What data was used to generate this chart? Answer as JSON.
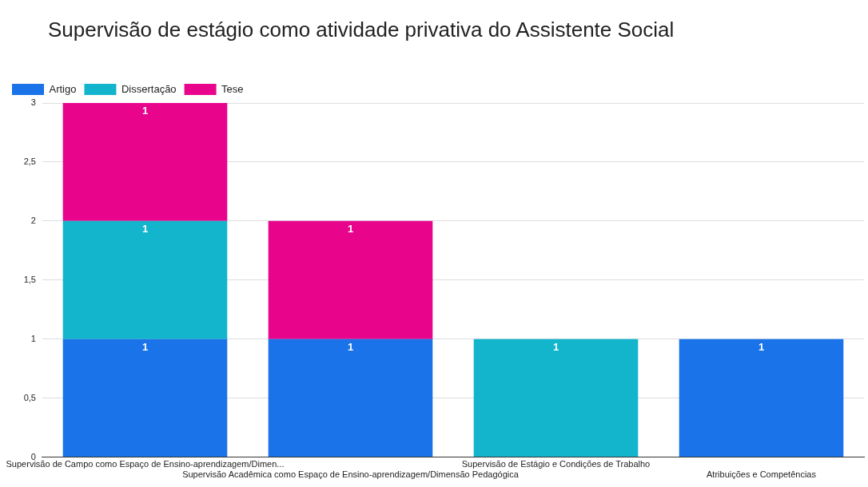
{
  "chart_data": {
    "type": "bar",
    "title": "Supervisão de estágio como atividade privativa do Assistente Social",
    "categories": [
      "Supervisão de Campo como Espaço de Ensino-aprendizagem/Dimen...",
      "Supervisão Acadêmica como Espaço de Ensino-aprendizagem/Dimensão Pedagógica",
      "Supervisão de Estágio e Condições de Trabalho",
      "Atribuições e Competências"
    ],
    "series": [
      {
        "name": "Artigo",
        "color": "#1a73e8",
        "values": [
          1,
          1,
          null,
          1
        ]
      },
      {
        "name": "Dissertação",
        "color": "#12b5cb",
        "values": [
          1,
          null,
          1,
          null
        ]
      },
      {
        "name": "Tese",
        "color": "#e8058c",
        "values": [
          1,
          1,
          null,
          null
        ]
      }
    ],
    "stacked": true,
    "ylim": [
      0,
      3
    ],
    "yticks": [
      0,
      {
        "value": 0.5,
        "label": "0,5"
      },
      1,
      {
        "value": 1.5,
        "label": "1,5"
      },
      2,
      {
        "value": 2.5,
        "label": "2,5"
      },
      3
    ],
    "grid": "y",
    "legend": "top left",
    "data_labels": true
  }
}
